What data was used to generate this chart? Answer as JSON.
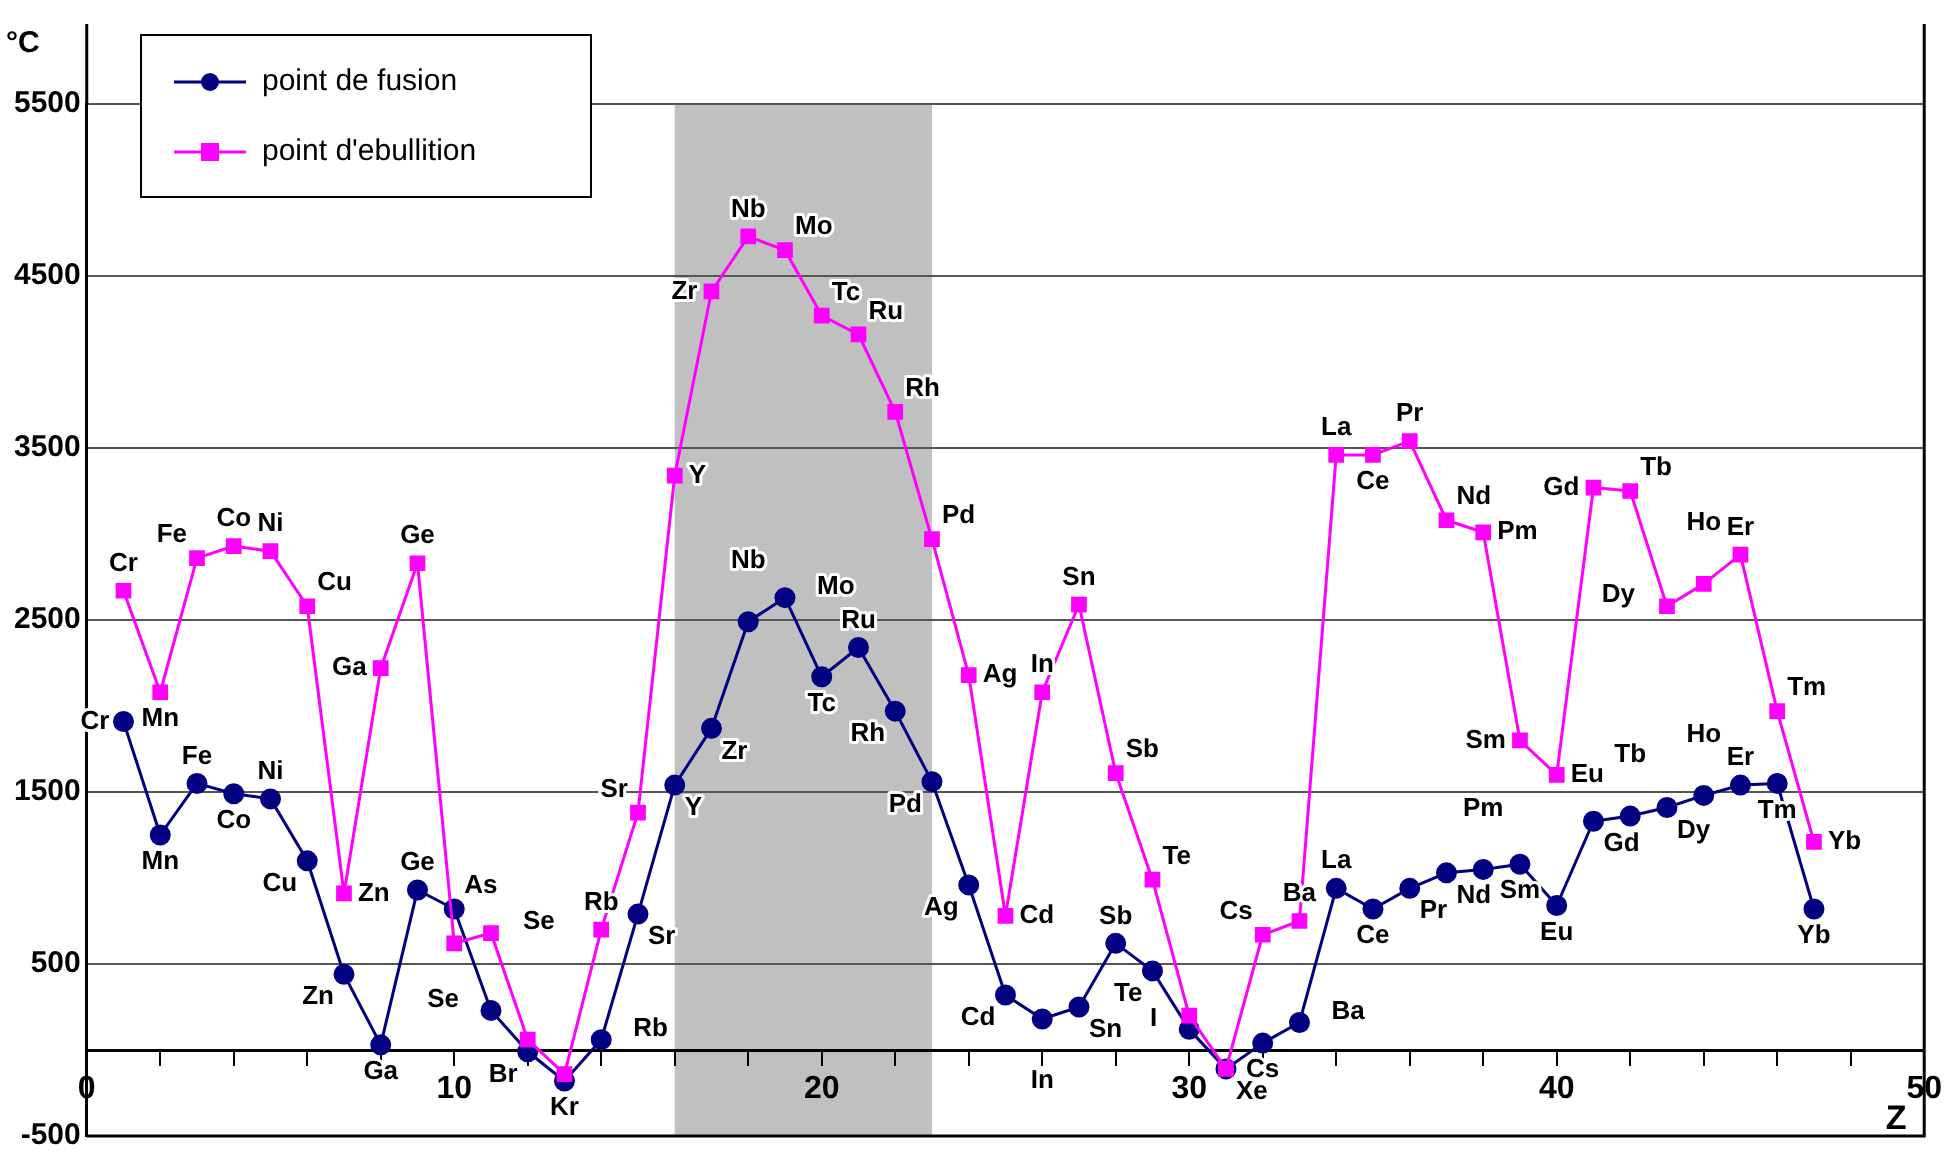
{
  "chart_data": {
    "type": "line",
    "ylabel": "°C",
    "xlabel": "Z",
    "x": [
      1,
      2,
      3,
      4,
      5,
      6,
      7,
      8,
      9,
      10,
      11,
      12,
      13,
      14,
      15,
      16,
      17,
      18,
      19,
      20,
      21,
      22,
      23,
      24,
      25,
      26,
      27,
      28,
      29,
      30,
      31,
      32,
      33,
      34,
      35,
      36,
      37,
      38,
      39,
      40,
      41,
      42,
      43,
      44,
      45,
      46,
      47
    ],
    "series": [
      {
        "name": "point de fusion",
        "color": "#000080",
        "marker": "circle",
        "values": [
          1910,
          1250,
          1550,
          1490,
          1460,
          1100,
          440,
          30,
          930,
          820,
          230,
          -10,
          -180,
          60,
          790,
          1540,
          1870,
          2490,
          2630,
          2170,
          2340,
          1970,
          1560,
          960,
          320,
          180,
          250,
          620,
          460,
          120,
          -110,
          40,
          160,
          940,
          820,
          940,
          1030,
          1050,
          1080,
          840,
          1330,
          1360,
          1410,
          1480,
          1540,
          1550,
          820
        ]
      },
      {
        "name": "point d'ebullition",
        "color": "#ff00ff",
        "marker": "square",
        "values": [
          2670,
          2080,
          2860,
          2930,
          2900,
          2580,
          910,
          2220,
          2830,
          620,
          680,
          60,
          -140,
          700,
          1380,
          3340,
          4410,
          4730,
          4650,
          4270,
          4160,
          3710,
          2970,
          2180,
          780,
          2080,
          2590,
          1610,
          990,
          200,
          -110,
          670,
          750,
          3460,
          3460,
          3540,
          3080,
          3010,
          1800,
          1600,
          3270,
          3250,
          2580,
          2710,
          2880,
          1970,
          1210
        ]
      }
    ],
    "xlim": [
      0,
      50
    ],
    "xticks": [
      0,
      {
        "value": 2,
        "label": null
      },
      {
        "value": 4,
        "label": null
      },
      {
        "value": 6,
        "label": null
      },
      {
        "value": 8,
        "label": null
      },
      10,
      {
        "value": 12,
        "label": null
      },
      {
        "value": 14,
        "label": null
      },
      {
        "value": 16,
        "label": null
      },
      {
        "value": 18,
        "label": null
      },
      20,
      {
        "value": 22,
        "label": null
      },
      {
        "value": 24,
        "label": null
      },
      {
        "value": 26,
        "label": null
      },
      {
        "value": 28,
        "label": null
      },
      30,
      {
        "value": 32,
        "label": null
      },
      {
        "value": 34,
        "label": null
      },
      {
        "value": 36,
        "label": null
      },
      {
        "value": 38,
        "label": null
      },
      40,
      {
        "value": 42,
        "label": null
      },
      {
        "value": 44,
        "label": null
      },
      {
        "value": 46,
        "label": null
      },
      {
        "value": 48,
        "label": null
      },
      50
    ],
    "ylim": [
      -500,
      5500
    ],
    "yticks": [
      -500,
      500,
      1500,
      2500,
      3500,
      4500,
      5500
    ],
    "grid": "y",
    "legend": "top left",
    "line_style": "solid",
    "bands": [
      {
        "axis": "x",
        "from": 16,
        "to": 23,
        "color": "#c0c0c0"
      }
    ],
    "annotations": [
      {
        "text": "Cr",
        "x": 1,
        "y": 1910
      },
      {
        "text": "Mn",
        "x": 2,
        "y": 1250
      },
      {
        "text": "Fe",
        "x": 3,
        "y": 1550
      },
      {
        "text": "Co",
        "x": 4,
        "y": 1490
      },
      {
        "text": "Ni",
        "x": 5,
        "y": 1460
      },
      {
        "text": "Cu",
        "x": 6,
        "y": 1100
      },
      {
        "text": "Zn",
        "x": 7,
        "y": 440
      },
      {
        "text": "Ga",
        "x": 8,
        "y": 30
      },
      {
        "text": "Ge",
        "x": 9,
        "y": 930
      },
      {
        "text": "As",
        "x": 10,
        "y": 820
      },
      {
        "text": "Se",
        "x": 11,
        "y": 230
      },
      {
        "text": "Br",
        "x": 12,
        "y": -10
      },
      {
        "text": "Kr",
        "x": 13,
        "y": -180
      },
      {
        "text": "Rb",
        "x": 14,
        "y": 60
      },
      {
        "text": "Sr",
        "x": 15,
        "y": 790
      },
      {
        "text": "Y",
        "x": 16,
        "y": 1540
      },
      {
        "text": "Zr",
        "x": 17,
        "y": 1870
      },
      {
        "text": "Nb",
        "x": 18,
        "y": 2490
      },
      {
        "text": "Mo",
        "x": 19,
        "y": 2630
      },
      {
        "text": "Tc",
        "x": 20,
        "y": 2170
      },
      {
        "text": "Ru",
        "x": 21,
        "y": 2340
      },
      {
        "text": "Rh",
        "x": 22,
        "y": 1970
      },
      {
        "text": "Pd",
        "x": 23,
        "y": 1560
      },
      {
        "text": "Ag",
        "x": 24,
        "y": 960
      },
      {
        "text": "Cd",
        "x": 25,
        "y": 320
      },
      {
        "text": "In",
        "x": 26,
        "y": 180
      },
      {
        "text": "Sn",
        "x": 27,
        "y": 250
      },
      {
        "text": "Sb",
        "x": 28,
        "y": 620
      },
      {
        "text": "Te",
        "x": 29,
        "y": 460
      },
      {
        "text": "I",
        "x": 30,
        "y": 120
      },
      {
        "text": "Xe",
        "x": 31,
        "y": -110
      },
      {
        "text": "Cs",
        "x": 32,
        "y": 40
      },
      {
        "text": "Ba",
        "x": 33,
        "y": 160
      },
      {
        "text": "La",
        "x": 34,
        "y": 940
      },
      {
        "text": "Ce",
        "x": 35,
        "y": 820
      },
      {
        "text": "Pr",
        "x": 36,
        "y": 940
      },
      {
        "text": "Nd",
        "x": 37,
        "y": 1030
      },
      {
        "text": "Pm",
        "x": 38,
        "y": 1050
      },
      {
        "text": "Sm",
        "x": 39,
        "y": 1080
      },
      {
        "text": "Eu",
        "x": 40,
        "y": 840
      },
      {
        "text": "Gd",
        "x": 41,
        "y": 1330
      },
      {
        "text": "Tb",
        "x": 42,
        "y": 1360
      },
      {
        "text": "Dy",
        "x": 43,
        "y": 1410
      },
      {
        "text": "Ho",
        "x": 44,
        "y": 1480
      },
      {
        "text": "Er",
        "x": 45,
        "y": 1540
      },
      {
        "text": "Tm",
        "x": 46,
        "y": 1550
      },
      {
        "text": "Yb",
        "x": 47,
        "y": 820
      },
      {
        "text": "Cr",
        "x": 1,
        "y": 2670
      },
      {
        "text": "Mn",
        "x": 2,
        "y": 2080
      },
      {
        "text": "Fe",
        "x": 3,
        "y": 2860
      },
      {
        "text": "Co",
        "x": 4,
        "y": 2930
      },
      {
        "text": "Ni",
        "x": 5,
        "y": 2900
      },
      {
        "text": "Cu",
        "x": 6,
        "y": 2580
      },
      {
        "text": "Zn",
        "x": 7,
        "y": 910
      },
      {
        "text": "Ga",
        "x": 8,
        "y": 2220
      },
      {
        "text": "Ge",
        "x": 9,
        "y": 2830
      },
      {
        "text": "Se",
        "x": 11,
        "y": 680
      },
      {
        "text": "Rb",
        "x": 14,
        "y": 700
      },
      {
        "text": "Sr",
        "x": 15,
        "y": 1380
      },
      {
        "text": "Y",
        "x": 16,
        "y": 3340
      },
      {
        "text": "Zr",
        "x": 17,
        "y": 4410
      },
      {
        "text": "Nb",
        "x": 18,
        "y": 4730
      },
      {
        "text": "Mo",
        "x": 19,
        "y": 4650
      },
      {
        "text": "Tc",
        "x": 20,
        "y": 4270
      },
      {
        "text": "Ru",
        "x": 21,
        "y": 4160
      },
      {
        "text": "Rh",
        "x": 22,
        "y": 3710
      },
      {
        "text": "Pd",
        "x": 23,
        "y": 2970
      },
      {
        "text": "Ag",
        "x": 24,
        "y": 2180
      },
      {
        "text": "Cd",
        "x": 25,
        "y": 780
      },
      {
        "text": "In",
        "x": 26,
        "y": 2080
      },
      {
        "text": "Sn",
        "x": 27,
        "y": 2590
      },
      {
        "text": "Sb",
        "x": 28,
        "y": 1610
      },
      {
        "text": "Te",
        "x": 29,
        "y": 990
      },
      {
        "text": "Cs",
        "x": 32,
        "y": 670
      },
      {
        "text": "Ba",
        "x": 33,
        "y": 750
      },
      {
        "text": "La",
        "x": 34,
        "y": 3460
      },
      {
        "text": "Ce",
        "x": 35,
        "y": 3460
      },
      {
        "text": "Pr",
        "x": 36,
        "y": 3540
      },
      {
        "text": "Nd",
        "x": 37,
        "y": 3080
      },
      {
        "text": "Pm",
        "x": 38,
        "y": 3010
      },
      {
        "text": "Sm",
        "x": 39,
        "y": 1800
      },
      {
        "text": "Eu",
        "x": 40,
        "y": 1600
      },
      {
        "text": "Gd",
        "x": 41,
        "y": 3270
      },
      {
        "text": "Tb",
        "x": 42,
        "y": 3250
      },
      {
        "text": "Dy",
        "x": 43,
        "y": 2580
      },
      {
        "text": "Ho",
        "x": 44,
        "y": 2710
      },
      {
        "text": "Er",
        "x": 45,
        "y": 2880
      },
      {
        "text": "Tm",
        "x": 46,
        "y": 1970
      },
      {
        "text": "Yb",
        "x": 47,
        "y": 1210
      }
    ]
  }
}
